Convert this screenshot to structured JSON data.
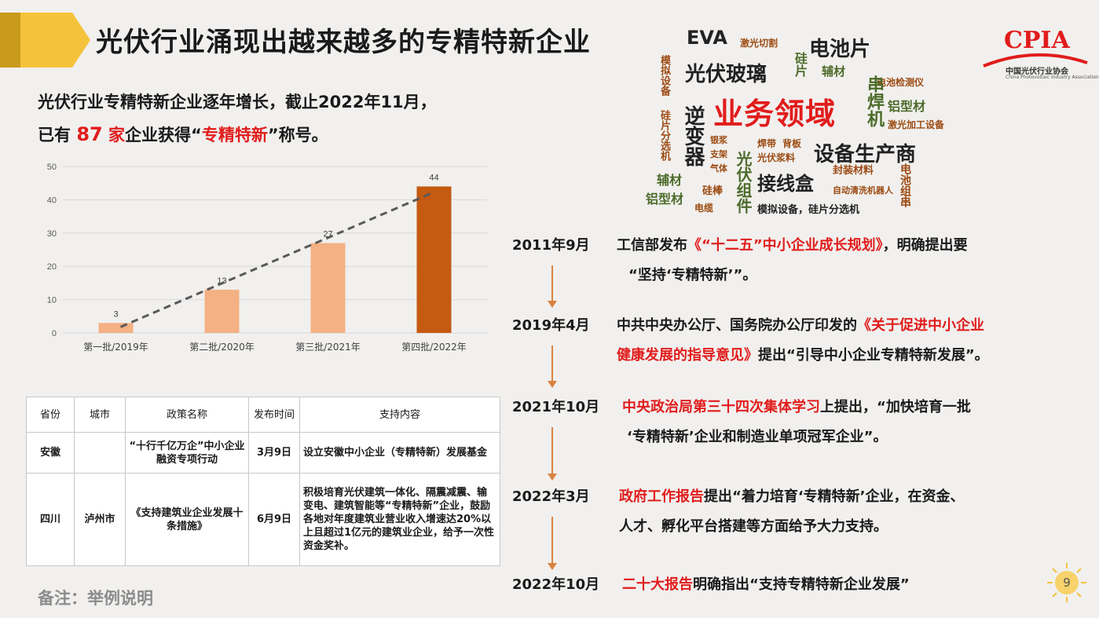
{
  "title": "光伏行业涌现出越来越多的专精特新企业",
  "intro": {
    "line1": "光伏行业专精特新企业逐年增长，截止2022年11月，",
    "line2_a": "已有 ",
    "count": "87",
    "unit": " 家",
    "line2_b": "企业获得“",
    "highlight": "专精特新",
    "line2_c": "”称号。"
  },
  "logo": {
    "text": "CPIA",
    "cn": "中国光伏行业协会",
    "en": "China Photovoltaic Industry Association"
  },
  "wordcloud": [
    {
      "t": "EVA"
    },
    {
      "t": "激光切割"
    },
    {
      "t": "电池片"
    },
    {
      "t": "硅片"
    },
    {
      "t": "光伏玻璃"
    },
    {
      "t": "辅材"
    },
    {
      "t": "模拟设备"
    },
    {
      "t": "电池检测仪"
    },
    {
      "t": "业务领域"
    },
    {
      "t": "串焊机"
    },
    {
      "t": "铝型材"
    },
    {
      "t": "逆变器"
    },
    {
      "t": "硅片分选机"
    },
    {
      "t": "激光加工设备"
    },
    {
      "t": "银浆"
    },
    {
      "t": "焊带"
    },
    {
      "t": "背板"
    },
    {
      "t": "支架"
    },
    {
      "t": "光伏浆料"
    },
    {
      "t": "设备生产商"
    },
    {
      "t": "气体"
    },
    {
      "t": "光伏组件"
    },
    {
      "t": "封装材料"
    },
    {
      "t": "辅材"
    },
    {
      "t": "接线盒"
    },
    {
      "t": "电池组串"
    },
    {
      "t": "铝型材"
    },
    {
      "t": "硅棒"
    },
    {
      "t": "自动清洗机器人"
    },
    {
      "t": "电缆"
    },
    {
      "t": "模拟设备，硅片分选机"
    }
  ],
  "chart_data": {
    "type": "bar",
    "categories": [
      "第一批/2019年",
      "第二批/2020年",
      "第三批/2021年",
      "第四批/2022年"
    ],
    "values": [
      3,
      13,
      27,
      44
    ],
    "yticks": [
      "0",
      "10",
      "20",
      "30",
      "40",
      "50"
    ],
    "ylim": [
      0,
      50
    ],
    "colors": [
      "#f4b183",
      "#f4b183",
      "#f4b183",
      "#c55a11"
    ],
    "trendline": true,
    "grid": true
  },
  "table": {
    "headers": [
      "省份",
      "城市",
      "政策名称",
      "发布时间",
      "支持内容"
    ],
    "rows": [
      [
        "安徽",
        "",
        "“十行千亿万企”中小企业融资专项行动",
        "3月9日",
        "设立安徽中小企业（专精特新）发展基金"
      ],
      [
        "四川",
        "泸州市",
        "《支持建筑业企业发展十条措施》",
        "6月9日",
        "积极培育光伏建筑一体化、隔震减震、输变电、建筑智能等“专精特新”企业，鼓励各地对年度建筑业营业收入增速达20%以上且超过1亿元的建筑业企业，给予一次性资金奖补。"
      ]
    ]
  },
  "note": "备注：举例说明",
  "timeline": [
    {
      "date": "2011年9月",
      "a": "工信部发布",
      "r": "《“十二五”中小企业成长规划》",
      "b": "，明确提出要",
      "line2": "“坚持‘专精特新’”。"
    },
    {
      "date": "2019年4月",
      "a": "中共中央办公厅、国务院办公厅印发的",
      "r": "《关于促进中小企业",
      "b": "",
      "line2_r": "健康发展的指导意见》",
      "line2": "提出“引导中小企业专精特新发展”。"
    },
    {
      "date": "2021年10月",
      "a": "",
      "r": "中央政治局第三十四次集体学习",
      "b": "上提出，“加快培育一批",
      "line2": "‘专精特新’企业和制造业单项冠军企业”。"
    },
    {
      "date": "2022年3月",
      "a": "",
      "r": "政府工作报告",
      "b": "提出“着力培育‘专精特新’企业，在资金、",
      "line2": "人才、孵化平台搭建等方面给予大力支持。"
    },
    {
      "date": "2022年10月",
      "a": "",
      "r": "二十大报告",
      "b": "明确指出“支持专精特新企业发展”",
      "line2": ""
    }
  ],
  "page_number": "9"
}
